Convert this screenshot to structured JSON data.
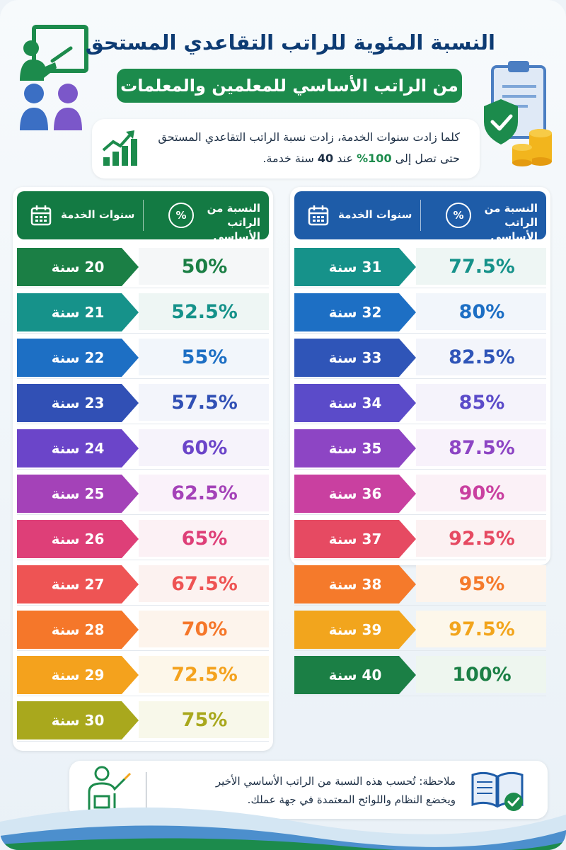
{
  "header": {
    "title": "النسبة المئوية للراتب التقاعدي المستحق",
    "subtitle": "من الراتب الأساسي للمعلمين والمعلمات"
  },
  "intro": {
    "line1": "كلما زادت سنوات الخدمة، زادت نسبة الراتب التقاعدي المستحق",
    "line2_pre": "حتى تصل إلى",
    "line2_pct": "100%",
    "line2_mid": "عند",
    "line2_num": "40",
    "line2_post": "سنة خدمة."
  },
  "table_header": {
    "years_label": "سنوات الخدمة",
    "pct_label_line1": "النسبة من",
    "pct_label_line2": "الراتب الأساسي",
    "pct_badge": "%"
  },
  "left_rows": [
    {
      "years": "20 سنة",
      "pct": "50%",
      "color": "#1b7f45",
      "tint": "#f5f7f8"
    },
    {
      "years": "21 سنة",
      "pct": "52.5%",
      "color": "#16928a",
      "tint": "#eef6f4"
    },
    {
      "years": "22 سنة",
      "pct": "55%",
      "color": "#1d6fc4",
      "tint": "#f2f6fb"
    },
    {
      "years": "23 سنة",
      "pct": "57.5%",
      "color": "#3150b5",
      "tint": "#f3f5fb"
    },
    {
      "years": "24 سنة",
      "pct": "60%",
      "color": "#6b45c9",
      "tint": "#f6f3fb"
    },
    {
      "years": "25 سنة",
      "pct": "62.5%",
      "color": "#a442b8",
      "tint": "#faf2fa"
    },
    {
      "years": "26 سنة",
      "pct": "65%",
      "color": "#de3f78",
      "tint": "#fcf1f5"
    },
    {
      "years": "27 سنة",
      "pct": "67.5%",
      "color": "#ee5454",
      "tint": "#fcf2f0"
    },
    {
      "years": "28 سنة",
      "pct": "70%",
      "color": "#f5772a",
      "tint": "#fdf4ec"
    },
    {
      "years": "29 سنة",
      "pct": "72.5%",
      "color": "#f4a21d",
      "tint": "#fdf7ea"
    },
    {
      "years": "30 سنة",
      "pct": "75%",
      "color": "#a9a81d",
      "tint": "#f8f8ea"
    }
  ],
  "right_rows": [
    {
      "years": "31 سنة",
      "pct": "77.5%",
      "color": "#16928a",
      "tint": "#eef6f4"
    },
    {
      "years": "32 سنة",
      "pct": "80%",
      "color": "#1d6fc4",
      "tint": "#f2f6fb"
    },
    {
      "years": "33 سنة",
      "pct": "82.5%",
      "color": "#2f55b8",
      "tint": "#f3f5fb"
    },
    {
      "years": "34 سنة",
      "pct": "85%",
      "color": "#5b4bc9",
      "tint": "#f5f3fb"
    },
    {
      "years": "35 سنة",
      "pct": "87.5%",
      "color": "#8d45c4",
      "tint": "#f8f2fb"
    },
    {
      "years": "36 سنة",
      "pct": "90%",
      "color": "#c940a0",
      "tint": "#fbf1f7"
    },
    {
      "years": "37 سنة",
      "pct": "92.5%",
      "color": "#e64a62",
      "tint": "#fcf1f2"
    },
    {
      "years": "38 سنة",
      "pct": "95%",
      "color": "#f57a2b",
      "tint": "#fdf4ec"
    },
    {
      "years": "39 سنة",
      "pct": "97.5%",
      "color": "#f2a51d",
      "tint": "#fdf7ea"
    },
    {
      "years": "40 سنة",
      "pct": "100%",
      "color": "#1b7f45",
      "tint": "#eef6ef"
    }
  ],
  "note": {
    "line1": "ملاحظة: تُحسب هذه النسبة من الراتب الأساسي الأخير",
    "line2": "ويخضع النظام واللوائح المعتمدة في جهة عملك."
  },
  "colors": {
    "title": "#0d3b73",
    "green": "#1c8b4c",
    "header_green": "#137a43",
    "header_blue": "#1e5ca8"
  },
  "icons": [
    "teacher-presenting-icon",
    "clipboard-shield-coins-icon",
    "growth-chart-icon",
    "calendar-icon",
    "percent-icon",
    "teacher-icon",
    "open-book-check-icon"
  ]
}
